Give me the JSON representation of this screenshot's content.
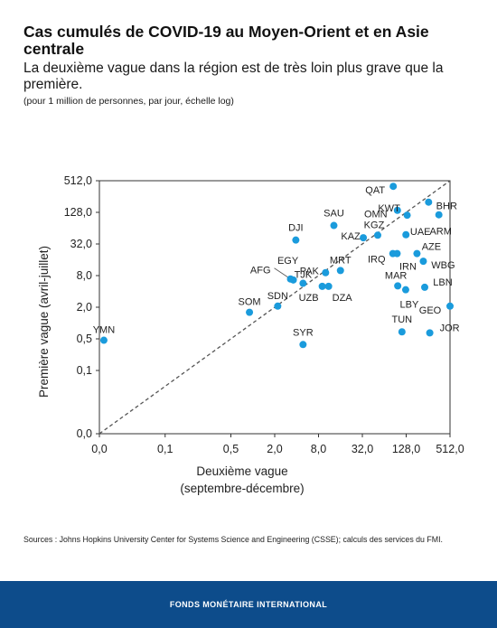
{
  "title": "Cas cumulés de COVID-19 au Moyen-Orient et en Asie centrale",
  "subtitle": "La deuxième vague dans la région est de très loin plus grave que la première.",
  "note": "(pour 1 million de personnes, par jour, échelle log)",
  "sources": "Sources : Johns Hopkins University Center for Systems Science and Engineering (CSSE); calculs des services du FMI.",
  "footer": "FONDS MONÉTAIRE INTERNATIONAL",
  "colors": {
    "point": "#1a9bdc",
    "footer": "#0d4c8b",
    "diagonal": "#555555"
  },
  "chart_data": {
    "type": "scatter",
    "xlabel": [
      "Deuxième vague",
      "(septembre-décembre)"
    ],
    "ylabel": "Première vague  (avril-juillet)",
    "scale": "log2",
    "x_ticks": [
      {
        "value": 0.0078125,
        "label": "0,0"
      },
      {
        "value": 0.0625,
        "label": "0,1"
      },
      {
        "value": 0.5,
        "label": "0,5"
      },
      {
        "value": 2,
        "label": "2,0"
      },
      {
        "value": 8,
        "label": "8,0"
      },
      {
        "value": 32,
        "label": "32,0"
      },
      {
        "value": 128,
        "label": "128,0"
      },
      {
        "value": 512,
        "label": "512,0"
      }
    ],
    "y_ticks": [
      {
        "value": 0.0078125,
        "label": "0,0"
      },
      {
        "value": 0.125,
        "label": "0,1"
      },
      {
        "value": 0.5,
        "label": "0,5"
      },
      {
        "value": 2,
        "label": "2,0"
      },
      {
        "value": 8,
        "label": "8,0"
      },
      {
        "value": 32,
        "label": "32,0"
      },
      {
        "value": 128,
        "label": "128,0"
      },
      {
        "value": 512,
        "label": "512,0"
      }
    ],
    "xlim": [
      0.0078125,
      512
    ],
    "ylim": [
      0.0078125,
      512
    ],
    "diagonal": true,
    "points": [
      {
        "label": "YMN",
        "x": 0.009,
        "y": 0.47
      },
      {
        "label": "SOM",
        "x": 0.9,
        "y": 1.6
      },
      {
        "label": "SDN",
        "x": 2.2,
        "y": 2.1
      },
      {
        "label": "SYR",
        "x": 4.9,
        "y": 0.39
      },
      {
        "label": "AFG",
        "x": 3.3,
        "y": 6.9
      },
      {
        "label": "EGY",
        "x": 3.6,
        "y": 6.6
      },
      {
        "label": "TJK",
        "x": 4.9,
        "y": 5.7
      },
      {
        "label": "DJI",
        "x": 3.9,
        "y": 38
      },
      {
        "label": "UZB",
        "x": 9,
        "y": 5.0
      },
      {
        "label": "DZA",
        "x": 11,
        "y": 5.0
      },
      {
        "label": "PAK",
        "x": 10,
        "y": 9.1
      },
      {
        "label": "MRT",
        "x": 16,
        "y": 10
      },
      {
        "label": "SAU",
        "x": 13,
        "y": 72
      },
      {
        "label": "KAZ",
        "x": 33,
        "y": 42
      },
      {
        "label": "KGZ",
        "x": 52,
        "y": 47
      },
      {
        "label": "IRQ",
        "x": 84,
        "y": 21
      },
      {
        "label": "IRN",
        "x": 96,
        "y": 21
      },
      {
        "label": "UAE",
        "x": 127,
        "y": 48
      },
      {
        "label": "AZE",
        "x": 180,
        "y": 21
      },
      {
        "label": "WBG",
        "x": 220,
        "y": 15
      },
      {
        "label": "OMN",
        "x": 97,
        "y": 140
      },
      {
        "label": "QAT",
        "x": 85,
        "y": 400
      },
      {
        "label": "KWT",
        "x": 132,
        "y": 113
      },
      {
        "label": "BHR",
        "x": 260,
        "y": 200
      },
      {
        "label": "ARM",
        "x": 360,
        "y": 115
      },
      {
        "label": "MAR",
        "x": 98,
        "y": 5.1
      },
      {
        "label": "LBY",
        "x": 126,
        "y": 4.3
      },
      {
        "label": "LBN",
        "x": 230,
        "y": 4.8
      },
      {
        "label": "TUN",
        "x": 112,
        "y": 0.68
      },
      {
        "label": "JOR",
        "x": 270,
        "y": 0.65
      },
      {
        "label": "GEO",
        "x": 512,
        "y": 2.1
      }
    ]
  }
}
